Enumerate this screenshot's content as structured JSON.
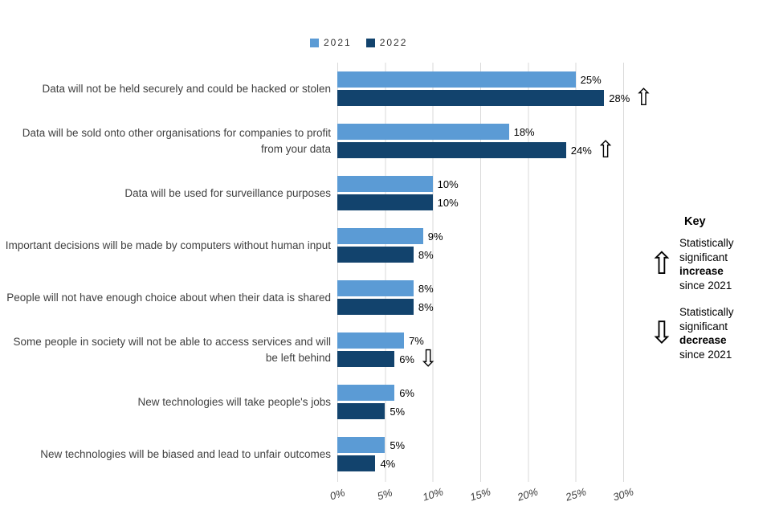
{
  "chart_data": {
    "type": "bar",
    "orientation": "horizontal",
    "categories": [
      "Data will not be held securely and could be hacked or stolen",
      "Data will be sold onto other organisations for companies to profit from your data",
      "Data will be used for surveillance purposes",
      "Important decisions will be made by computers without human input",
      "People will not have enough choice about when their data is shared",
      "Some people in society will not be able to access services and will be left behind",
      "New technologies will take people's jobs",
      "New technologies will be biased and lead to unfair outcomes"
    ],
    "series": [
      {
        "name": "2021",
        "color": "#5B9BD5",
        "values": [
          25,
          18,
          10,
          9,
          8,
          7,
          6,
          5
        ]
      },
      {
        "name": "2022",
        "color": "#12436D",
        "values": [
          28,
          24,
          10,
          8,
          8,
          6,
          5,
          4
        ]
      }
    ],
    "value_suffix": "%",
    "x_ticks": [
      "0%",
      "5%",
      "10%",
      "15%",
      "20%",
      "25%",
      "30%"
    ],
    "xlim": [
      0,
      30
    ],
    "grid": true,
    "legend_position": "top",
    "annotations": [
      {
        "category_index": 0,
        "series": "2022",
        "type": "increase"
      },
      {
        "category_index": 1,
        "series": "2022",
        "type": "increase"
      },
      {
        "category_index": 5,
        "series": "2022",
        "type": "decrease"
      }
    ]
  },
  "key": {
    "title": "Key",
    "items": [
      {
        "icon": "arrow-up",
        "lines": [
          "Statistically",
          "significant",
          "increase",
          "since 2021"
        ],
        "bold": "increase"
      },
      {
        "icon": "arrow-down",
        "lines": [
          "Statistically",
          "significant",
          "decrease",
          "since 2021"
        ],
        "bold": "decrease"
      }
    ]
  }
}
